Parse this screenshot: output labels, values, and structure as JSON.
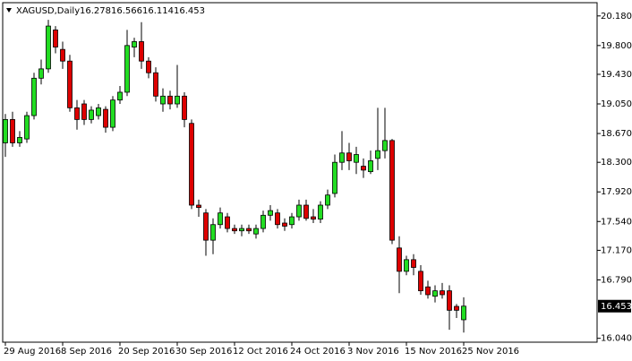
{
  "chart_data": {
    "type": "candlestick",
    "title": "XAGUSD,Daily",
    "categories": [
      "29 Aug 2016",
      null,
      null,
      null,
      null,
      null,
      null,
      null,
      "8 Sep 2016",
      null,
      null,
      null,
      null,
      null,
      null,
      null,
      "20 Sep 2016",
      null,
      null,
      null,
      null,
      null,
      null,
      null,
      "30 Sep 2016",
      null,
      null,
      null,
      null,
      null,
      null,
      null,
      "12 Oct 2016",
      null,
      null,
      null,
      null,
      null,
      null,
      null,
      "24 Oct 2016",
      null,
      null,
      null,
      null,
      null,
      null,
      null,
      "3 Nov 2016",
      null,
      null,
      null,
      null,
      null,
      null,
      null,
      "15 Nov 2016",
      null,
      null,
      null,
      null,
      null,
      null,
      null,
      "25 Nov 2016"
    ],
    "open": [
      18.55,
      18.85,
      18.55,
      18.6,
      18.9,
      19.38,
      19.5,
      20.0,
      19.75,
      19.6,
      19.0,
      19.05,
      18.85,
      18.9,
      18.98,
      18.75,
      19.1,
      19.2,
      19.78,
      19.85,
      19.6,
      19.45,
      19.05,
      19.15,
      19.05,
      19.15,
      18.8,
      17.75,
      17.65,
      17.3,
      17.5,
      17.6,
      17.45,
      17.42,
      17.45,
      17.38,
      17.45,
      17.62,
      17.65,
      17.52,
      17.5,
      17.6,
      17.75,
      17.6,
      17.57,
      17.75,
      17.9,
      18.3,
      18.42,
      18.3,
      18.25,
      18.18,
      18.35,
      18.45,
      18.58,
      17.2,
      16.9,
      17.05,
      16.9,
      16.7,
      16.58,
      16.65,
      16.65,
      16.45,
      16.278
    ],
    "high": [
      18.92,
      18.95,
      18.7,
      18.95,
      19.45,
      19.62,
      20.13,
      20.05,
      19.85,
      19.68,
      19.1,
      19.1,
      19.02,
      19.05,
      19.02,
      19.15,
      19.28,
      20.0,
      19.9,
      20.1,
      19.65,
      19.52,
      19.25,
      19.22,
      19.55,
      19.2,
      18.85,
      17.82,
      17.7,
      17.58,
      17.72,
      17.65,
      17.5,
      17.5,
      17.5,
      17.5,
      17.68,
      17.75,
      17.7,
      17.58,
      17.65,
      17.82,
      17.82,
      17.7,
      17.8,
      17.95,
      18.4,
      18.7,
      18.55,
      18.5,
      18.35,
      18.45,
      19.0,
      19.0,
      18.6,
      17.35,
      17.1,
      17.12,
      16.98,
      16.78,
      16.72,
      16.75,
      16.72,
      16.48,
      16.566
    ],
    "low": [
      18.37,
      18.5,
      18.5,
      18.55,
      18.85,
      19.3,
      19.45,
      19.7,
      19.5,
      18.95,
      18.72,
      18.78,
      18.8,
      18.85,
      18.68,
      18.7,
      19.05,
      19.15,
      19.65,
      19.5,
      19.38,
      19.08,
      18.95,
      18.98,
      19.0,
      18.75,
      17.7,
      17.6,
      17.1,
      17.12,
      17.45,
      17.4,
      17.38,
      17.35,
      17.38,
      17.32,
      17.4,
      17.55,
      17.45,
      17.42,
      17.45,
      17.55,
      17.55,
      17.52,
      17.52,
      17.7,
      17.85,
      18.2,
      18.2,
      18.15,
      18.1,
      18.15,
      18.2,
      18.35,
      17.25,
      16.62,
      16.85,
      16.85,
      16.6,
      16.55,
      16.5,
      16.55,
      16.15,
      16.3,
      16.114
    ],
    "close": [
      18.85,
      18.55,
      18.62,
      18.9,
      19.38,
      19.5,
      20.05,
      19.78,
      19.6,
      19.0,
      18.85,
      18.85,
      18.97,
      19.0,
      18.75,
      19.1,
      19.2,
      19.8,
      19.85,
      19.6,
      19.45,
      19.15,
      19.15,
      19.05,
      19.15,
      18.85,
      17.75,
      17.72,
      17.3,
      17.5,
      17.65,
      17.45,
      17.42,
      17.45,
      17.42,
      17.45,
      17.62,
      17.68,
      17.5,
      17.48,
      17.6,
      17.75,
      17.58,
      17.57,
      17.75,
      17.88,
      18.3,
      18.42,
      18.32,
      18.4,
      18.2,
      18.32,
      18.45,
      18.58,
      17.3,
      16.9,
      17.05,
      16.95,
      16.65,
      16.6,
      16.65,
      16.6,
      16.4,
      16.4,
      16.453
    ],
    "up_color": "#22dd22",
    "down_color": "#dd0000",
    "ylim": [
      15.99,
      20.35
    ],
    "yticks": [
      {
        "value": 20.18,
        "label": "20.180"
      },
      {
        "value": 19.8,
        "label": "19.800"
      },
      {
        "value": 19.43,
        "label": "19.430"
      },
      {
        "value": 19.05,
        "label": "19.050"
      },
      {
        "value": 18.67,
        "label": "18.670"
      },
      {
        "value": 18.3,
        "label": "18.300"
      },
      {
        "value": 17.92,
        "label": "17.920"
      },
      {
        "value": 17.54,
        "label": "17.540"
      },
      {
        "value": 17.17,
        "label": "17.170"
      },
      {
        "value": 16.79,
        "label": "16.790"
      },
      {
        "value": 16.04,
        "label": "16.040"
      }
    ]
  }
}
